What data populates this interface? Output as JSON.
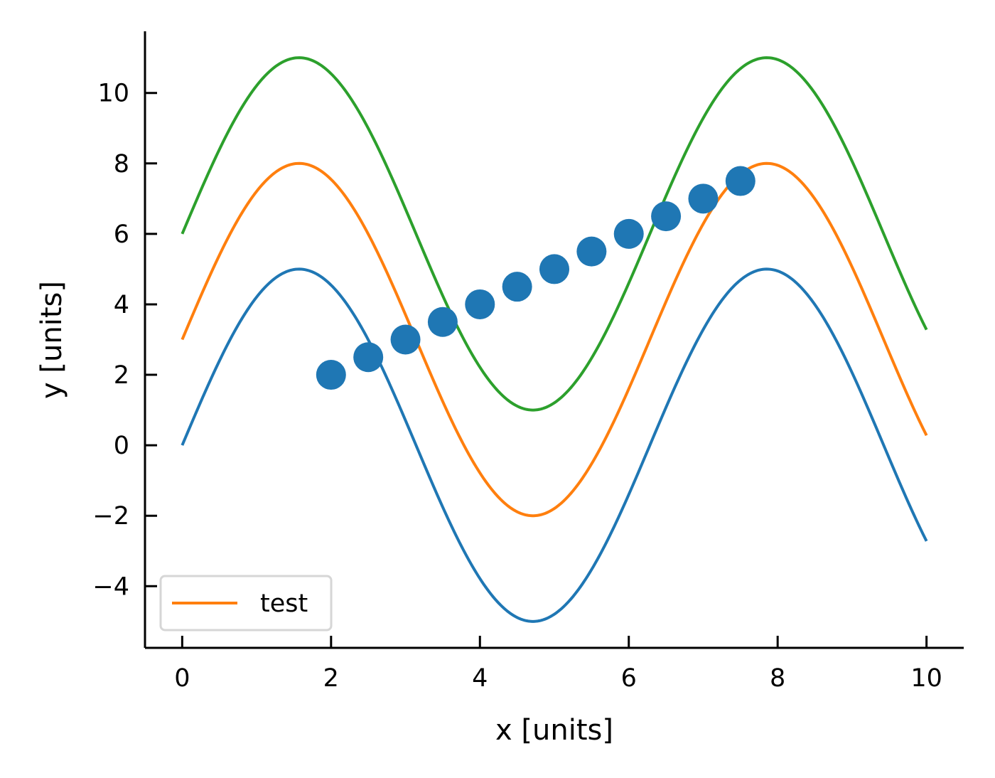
{
  "chart_data": {
    "type": "line",
    "title": "",
    "xlabel": "x [units]",
    "ylabel": "y [units]",
    "xlim": [
      -0.5,
      10.5
    ],
    "ylim": [
      -5.75,
      11.75
    ],
    "xticks": [
      0,
      2,
      4,
      6,
      8,
      10
    ],
    "yticks": [
      -4,
      -2,
      0,
      2,
      4,
      6,
      8,
      10
    ],
    "grid": false,
    "legend": {
      "placement": "lower-left",
      "entries": [
        "test"
      ]
    },
    "series": [
      {
        "kind": "line",
        "color": "#1f77b4",
        "formula": "5*sin(x)",
        "x_range": [
          0,
          10
        ]
      },
      {
        "kind": "line",
        "name": "test",
        "color": "#ff7f0e",
        "formula": "5*sin(x)+3",
        "x_range": [
          0,
          10
        ]
      },
      {
        "kind": "line",
        "color": "#2ca02c",
        "formula": "5*sin(x)+6",
        "x_range": [
          0,
          10
        ]
      },
      {
        "kind": "scatter",
        "color": "#1f77b4",
        "x": [
          2,
          2.5,
          3,
          3.5,
          4,
          4.5,
          5,
          5.5,
          6,
          6.5,
          7,
          7.5
        ],
        "y": [
          2,
          2.5,
          3,
          3.5,
          4,
          4.5,
          5,
          5.5,
          6,
          6.5,
          7,
          7.5
        ]
      }
    ]
  }
}
